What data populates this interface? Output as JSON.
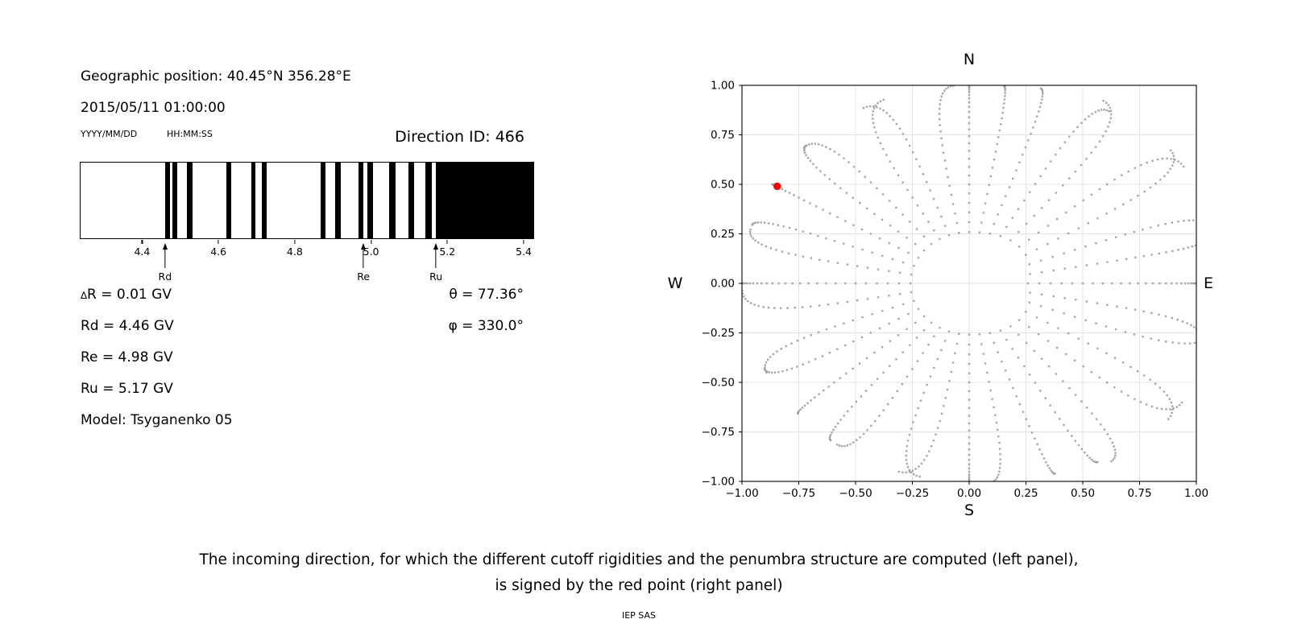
{
  "left_panel": {
    "geo_position": "Geographic position: 40.45°N 356.28°E",
    "datetime": "2015/05/11 01:00:00",
    "date_format_hint": "YYYY/MM/DD",
    "time_format_hint": "HH:MM:SS",
    "direction_id": "Direction ID: 466",
    "stats": {
      "delta_symbol": "∆",
      "delta_rest": "R = 0.01 GV",
      "lines": [
        "Rd = 4.46 GV",
        "Re = 4.98 GV",
        "Ru = 5.17 GV",
        "Model: Tsyganenko 05"
      ],
      "theta_line": "θ = 77.36°",
      "phi_line": "φ = 330.0°"
    }
  },
  "right_panel": {
    "compass": {
      "top": "N",
      "bottom": "S",
      "left": "W",
      "right": "E"
    }
  },
  "caption": {
    "line1": "The incoming direction, for which the different cutoff rigidities and the penumbra structure are computed (left panel),",
    "line2": "is signed by the red point (right panel)",
    "credit": "IEP SAS"
  },
  "chart_data": [
    {
      "type": "bar",
      "name": "penumbra-barcode",
      "description": "Cosmic-ray penumbra structure: black bands = forbidden rigidity intervals (GV)",
      "xlim": [
        4.2365,
        5.4274
      ],
      "xticks": [
        4.4,
        4.6,
        4.8,
        5.0,
        5.2,
        5.4
      ],
      "xtick_labels": [
        "4.4",
        "4.6",
        "4.8",
        "5.0",
        "5.2",
        "5.4"
      ],
      "forbidden_bands_gv": [
        [
          4.459,
          4.472
        ],
        [
          4.478,
          4.491
        ],
        [
          4.516,
          4.531
        ],
        [
          4.619,
          4.632
        ],
        [
          4.685,
          4.697
        ],
        [
          4.714,
          4.727
        ],
        [
          4.868,
          4.881
        ],
        [
          4.906,
          4.921
        ],
        [
          4.968,
          4.98
        ],
        [
          4.991,
          5.005
        ],
        [
          5.048,
          5.065
        ],
        [
          5.098,
          5.113
        ],
        [
          5.143,
          5.16
        ],
        [
          5.172,
          5.4274
        ]
      ],
      "markers": [
        {
          "name": "Rd",
          "gv": 4.46
        },
        {
          "name": "Re",
          "gv": 4.98
        },
        {
          "name": "Ru",
          "gv": 5.17
        }
      ],
      "values": {
        "delta_R_GV": 0.01,
        "Rd_GV": 4.46,
        "Re_GV": 4.98,
        "Ru_GV": 5.17,
        "theta_deg": 77.36,
        "phi_deg": 330.0,
        "model": "Tsyganenko 05"
      }
    },
    {
      "type": "scatter",
      "name": "direction-grid",
      "description": "Grid of incoming directions (gray dots); red point = direction ID 466",
      "xlim": [
        -1,
        1
      ],
      "ylim": [
        -1,
        1
      ],
      "xticks": [
        -1,
        -0.75,
        -0.5,
        -0.25,
        0,
        0.25,
        0.5,
        0.75,
        1
      ],
      "yticks": [
        1,
        0.75,
        0.5,
        0.25,
        0,
        -0.25,
        -0.5,
        -0.75,
        -1
      ],
      "xtick_labels": [
        "−1.00",
        "−0.75",
        "−0.50",
        "−0.25",
        "0.00",
        "0.25",
        "0.50",
        "0.75",
        "1.00"
      ],
      "ytick_labels": [
        "1.00",
        "0.75",
        "0.50",
        "0.25",
        "0.00",
        "−0.25",
        "−0.50",
        "−0.75",
        "−1.00"
      ],
      "grid": true,
      "grid_color": "#e3e3e3",
      "dot_color": "#969696",
      "red_point": {
        "x": -0.845,
        "y": 0.49,
        "color": "#ff0000"
      },
      "pattern": {
        "azimuth_start_deg": 0,
        "azimuth_step_deg": 10,
        "azimuth_count": 36,
        "zenith_min_deg": 15,
        "zenith_max_deg": 90,
        "zenith_step_deg": 3,
        "radius_rule": "sin(zenith)",
        "inner_ring_radius": 0.259,
        "tip_curl_deg": 8,
        "corner_extension": 0.15
      }
    }
  ]
}
